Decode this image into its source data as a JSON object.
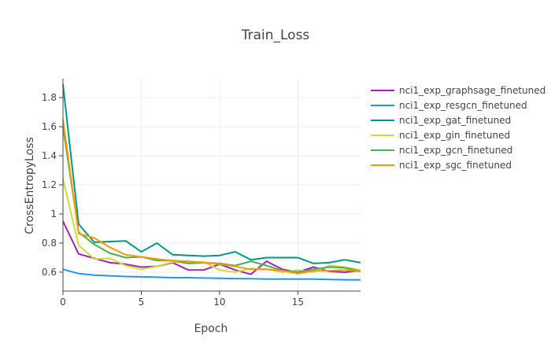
{
  "chart_data": {
    "type": "line",
    "title": "Train_Loss",
    "xlabel": "Epoch",
    "ylabel": "CrossEntropyLoss",
    "xlim": [
      0,
      19
    ],
    "ylim": [
      0.47,
      1.93
    ],
    "x_ticks": [
      0,
      5,
      10,
      15
    ],
    "y_ticks": [
      0.6,
      0.8,
      1,
      1.2,
      1.4,
      1.6,
      1.8
    ],
    "grid": true,
    "legend_position": "right",
    "x": [
      0,
      1,
      2,
      3,
      4,
      5,
      6,
      7,
      8,
      9,
      10,
      11,
      12,
      13,
      14,
      15,
      16,
      17,
      18,
      19
    ],
    "series": [
      {
        "name": "nci1_exp_graphsage_finetuned",
        "color": "#9c27b0",
        "values": [
          0.95,
          0.725,
          0.695,
          0.665,
          0.655,
          0.635,
          0.64,
          0.665,
          0.615,
          0.615,
          0.655,
          0.615,
          0.585,
          0.675,
          0.62,
          0.6,
          0.635,
          0.605,
          0.6,
          0.61
        ]
      },
      {
        "name": "nci1_exp_resgcn_finetuned",
        "color": "#2196f3",
        "values": [
          0.62,
          0.59,
          0.58,
          0.575,
          0.57,
          0.568,
          0.565,
          0.562,
          0.562,
          0.56,
          0.558,
          0.556,
          0.555,
          0.553,
          0.552,
          0.552,
          0.553,
          0.55,
          0.548,
          0.547
        ]
      },
      {
        "name": "nci1_exp_gat_finetuned",
        "color": "#009688",
        "values": [
          1.89,
          0.93,
          0.805,
          0.81,
          0.815,
          0.74,
          0.8,
          0.72,
          0.715,
          0.71,
          0.715,
          0.74,
          0.685,
          0.7,
          0.7,
          0.7,
          0.66,
          0.665,
          0.685,
          0.665
        ]
      },
      {
        "name": "nci1_exp_gin_finetuned",
        "color": "#cddc39",
        "values": [
          1.24,
          0.785,
          0.69,
          0.695,
          0.645,
          0.62,
          0.64,
          0.67,
          0.665,
          0.67,
          0.615,
          0.6,
          0.625,
          0.62,
          0.6,
          0.615,
          0.6,
          0.645,
          0.635,
          0.615
        ]
      },
      {
        "name": "nci1_exp_gcn_finetuned",
        "color": "#4caf50",
        "values": [
          1.6,
          0.875,
          0.79,
          0.73,
          0.7,
          0.705,
          0.68,
          0.68,
          0.66,
          0.665,
          0.66,
          0.645,
          0.675,
          0.645,
          0.61,
          0.6,
          0.62,
          0.635,
          0.63,
          0.605
        ]
      },
      {
        "name": "nci1_exp_sgc_finetuned",
        "color": "#ff9800",
        "values": [
          1.65,
          0.865,
          0.835,
          0.77,
          0.72,
          0.705,
          0.69,
          0.68,
          0.675,
          0.665,
          0.655,
          0.64,
          0.62,
          0.62,
          0.61,
          0.59,
          0.61,
          0.61,
          0.615,
          0.605
        ]
      }
    ]
  }
}
